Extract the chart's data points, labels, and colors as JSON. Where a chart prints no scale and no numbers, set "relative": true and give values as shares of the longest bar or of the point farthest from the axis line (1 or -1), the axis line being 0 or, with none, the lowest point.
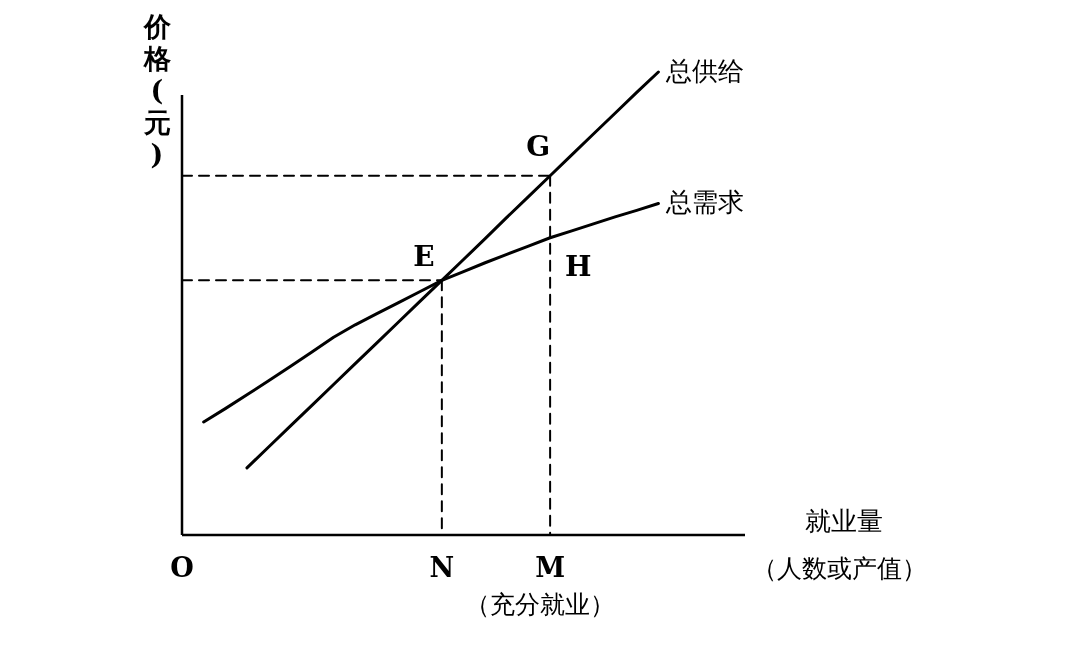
{
  "chart_data": {
    "type": "line",
    "relative": true,
    "xlabel": "就业量",
    "ylabel": "价格(元)",
    "categories": [
      "O",
      null,
      null,
      null,
      null,
      null,
      null,
      null,
      null,
      null,
      null,
      null,
      "N",
      null,
      null,
      null,
      null,
      "M",
      null,
      null,
      null,
      null,
      null,
      null,
      null,
      null,
      null
    ],
    "series": [
      {
        "name": "总供给",
        "color": "#000000",
        "values": [
          null,
          null,
          null,
          0.145,
          0.19,
          0.235,
          0.28,
          0.325,
          0.37,
          0.415,
          0.46,
          0.505,
          0.55,
          0.595,
          0.64,
          0.686,
          0.731,
          0.776,
          0.821,
          0.866,
          0.911,
          0.956,
          1,
          null,
          null,
          null,
          null
        ]
      },
      {
        "name": "总需求",
        "color": "#000000",
        "values": [
          null,
          0.244,
          0.273,
          0.303,
          0.333,
          0.364,
          0.395,
          0.427,
          0.454,
          0.478,
          0.502,
          0.526,
          0.55,
          0.569,
          0.588,
          0.606,
          0.624,
          0.642,
          0.657,
          0.672,
          0.687,
          0.701,
          0.716,
          null,
          null,
          null,
          null
        ]
      },
      {
        "color": "#000000",
        "line_style": "dashed",
        "x": [
          "O",
          "N"
        ],
        "values": [
          0.55,
          0.55
        ]
      },
      {
        "color": "#000000",
        "line_style": "dashed",
        "x": [
          "N",
          "N"
        ],
        "values": [
          0.55,
          0
        ]
      },
      {
        "color": "#000000",
        "line_style": "dashed",
        "x": [
          "O",
          "M"
        ],
        "values": [
          0.776,
          0.776
        ]
      },
      {
        "color": "#000000",
        "line_style": "dashed",
        "x": [
          "M",
          "M"
        ],
        "values": [
          0.776,
          0
        ]
      }
    ],
    "annotations": [
      {
        "text": "E",
        "x": "N",
        "y": 0.55
      },
      {
        "text": "G",
        "x": "M",
        "y": 0.776
      },
      {
        "text": "H",
        "x": "M",
        "y": 0.642
      },
      "（人数或产值）",
      "（充分就业）"
    ],
    "line_style": "solid",
    "marker": "none",
    "legend": false
  }
}
